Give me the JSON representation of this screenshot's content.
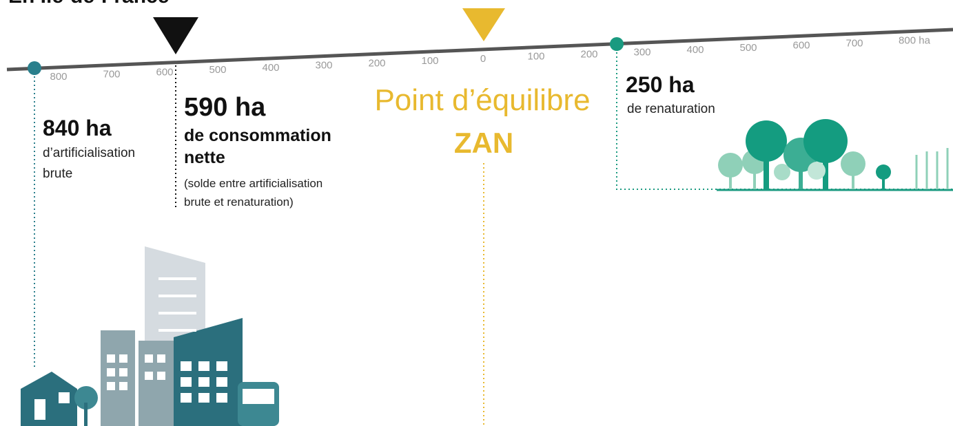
{
  "title": "En Île-de-France",
  "scale": {
    "left_ticks": [
      "800",
      "700",
      "600",
      "500",
      "400",
      "300",
      "200",
      "100"
    ],
    "zero": "0",
    "right_ticks": [
      "100",
      "200",
      "300",
      "400",
      "500",
      "600",
      "700",
      "800 ha"
    ]
  },
  "artificialisation": {
    "amount": "840 ha",
    "lines": [
      "d’artificialisation",
      "brute"
    ]
  },
  "consommation": {
    "amount": "590 ha",
    "lines": [
      "de consommation",
      "nette"
    ],
    "note": [
      "(solde entre artificialisation",
      "brute et renaturation)"
    ]
  },
  "equilibre": {
    "label": "Point d’équilibre",
    "name": "ZAN"
  },
  "renaturation": {
    "amount": "250 ha",
    "label": "de renaturation"
  }
}
